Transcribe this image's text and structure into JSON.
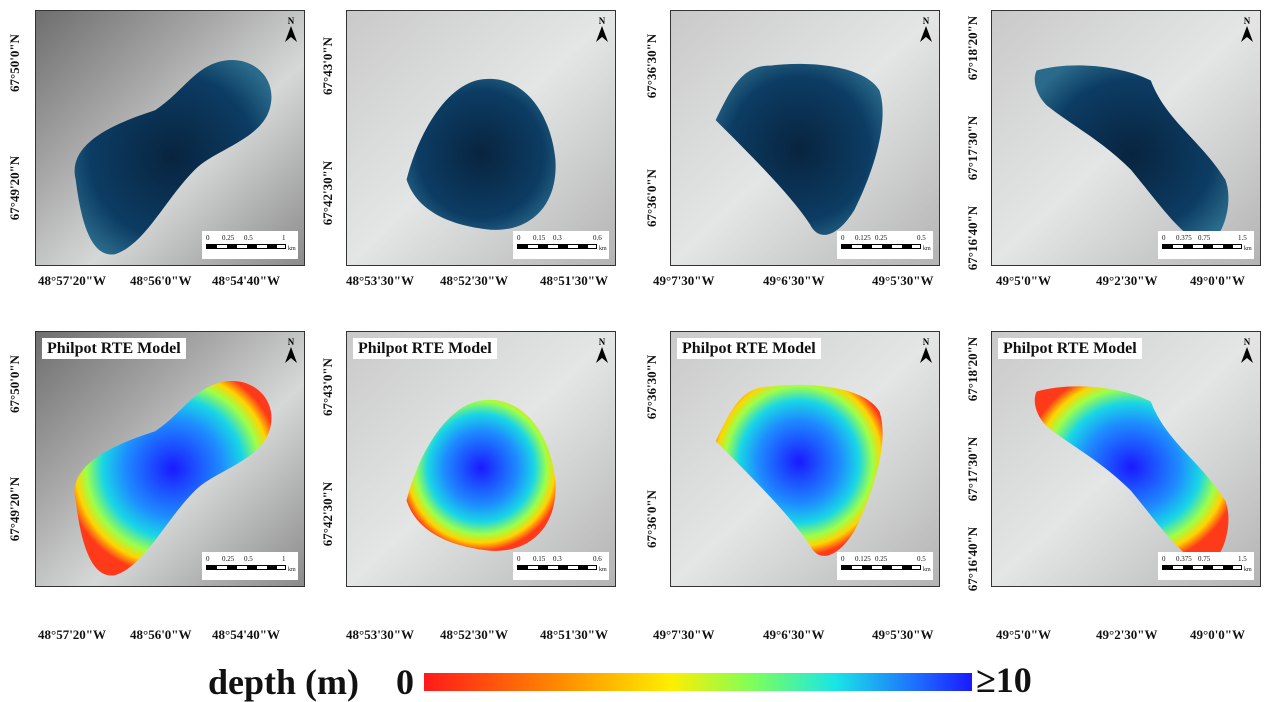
{
  "figure": {
    "legend": {
      "label": "depth (m)",
      "min_label": "0",
      "max_label": "≥10",
      "colors": [
        "#ff1a1a",
        "#ff8c00",
        "#ffee00",
        "#7dff5a",
        "#19e6e6",
        "#1e6cff",
        "#1a1aff"
      ]
    },
    "model_label": "Philpot RTE Model",
    "north_label": "N",
    "scale_unit": "km",
    "lakes": [
      {
        "lat_labels": [
          "67°50'0\"N",
          "67°49'20\"N"
        ],
        "lon_labels": [
          "48°57'20\"W",
          "48°56'0\"W",
          "48°54'40\"W"
        ],
        "scale_ticks": [
          "0",
          "0.25",
          "0.5",
          "1"
        ]
      },
      {
        "lat_labels": [
          "67°43'0\"N",
          "67°42'30\"N"
        ],
        "lon_labels": [
          "48°53'30\"W",
          "48°52'30\"W",
          "48°51'30\"W"
        ],
        "scale_ticks": [
          "0",
          "0.15",
          "0.3",
          "0.6"
        ]
      },
      {
        "lat_labels": [
          "67°36'30\"N",
          "67°36'0\"N"
        ],
        "lon_labels": [
          "49°7'30\"W",
          "49°6'30\"W",
          "49°5'30\"W"
        ],
        "scale_ticks": [
          "0",
          "0.125",
          "0.25",
          "0.5"
        ]
      },
      {
        "lat_labels": [
          "67°18'20\"N",
          "67°17'30\"N",
          "67°16'40\"N"
        ],
        "lon_labels": [
          "49°5'0\"W",
          "49°2'30\"W",
          "49°0'0\"W"
        ],
        "scale_ticks": [
          "0",
          "0.375",
          "0.75",
          "1.5"
        ]
      }
    ]
  }
}
